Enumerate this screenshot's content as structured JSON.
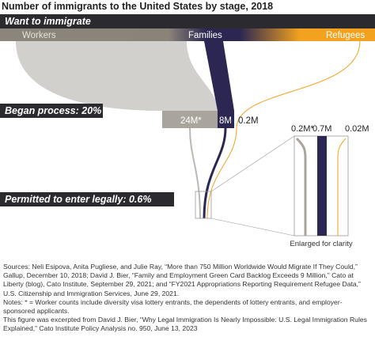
{
  "title": "Number of immigrants to the United States by stage, 2018",
  "stages": [
    {
      "label": "Want to immigrate"
    },
    {
      "label": "Began process: 20%"
    },
    {
      "label": "Permitted to enter legally: 0.6%"
    }
  ],
  "groups": [
    "Workers",
    "Families",
    "Refugees"
  ],
  "began_process_labels": [
    "24M*",
    "8M",
    "0.2M"
  ],
  "permitted_labels": [
    "0.2M*",
    "0.7M",
    "0.02M"
  ],
  "enlarged_note": "Enlarged for clarity",
  "footer": [
    "Sources: Neli Esipova, Anita Pugliese, and Julie Ray, “More than 750 Million Worldwide Would Migrate If They Could,” Gallup, December 10, 2018; David J. Bier, “Family and Employment Green Card Backlog Exceeds 9 Million,” Cato at Liberty (blog), Cato Institute, September 29, 2021; and “FY2021 Appropriations Reporting Requirement Refugee Data,” U.S. Citizenship and Immigration Services, June 29, 2021.",
    "Notes: * = Worker counts include diversity visa lottery entrants, the dependents of lottery entrants, and employer-sponsored applicants.",
    "This figure was excerpted from David J. Bier, “Why Legal Immigration Is Nearly Impossible: U.S. Legal Immigration Rules Explained,” Cato Institute Policy Analysis no. 950, June 13, 2023"
  ]
}
